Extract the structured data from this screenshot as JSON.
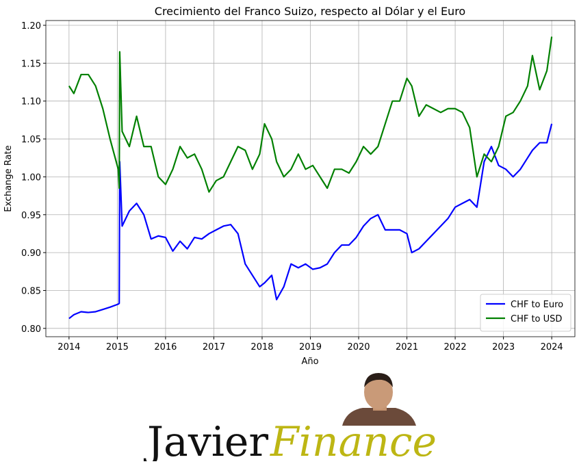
{
  "chart_data": {
    "type": "line",
    "title": "Crecimiento del Franco Suizo, respecto al Dólar y el Euro",
    "xlabel": "Año",
    "ylabel": "Exchange Rate",
    "x": [
      2014,
      2014.1,
      2014.25,
      2014.4,
      2014.55,
      2014.7,
      2014.85,
      2015.02,
      2015.04,
      2015.05,
      2015.1,
      2015.25,
      2015.4,
      2015.55,
      2015.7,
      2015.85,
      2016,
      2016.15,
      2016.3,
      2016.45,
      2016.6,
      2016.75,
      2016.9,
      2017.05,
      2017.2,
      2017.35,
      2017.5,
      2017.65,
      2017.8,
      2017.95,
      2018.05,
      2018.2,
      2018.3,
      2018.45,
      2018.6,
      2018.75,
      2018.9,
      2019.05,
      2019.2,
      2019.35,
      2019.5,
      2019.65,
      2019.8,
      2019.95,
      2020.1,
      2020.25,
      2020.4,
      2020.55,
      2020.7,
      2020.85,
      2021.0,
      2021.1,
      2021.25,
      2021.4,
      2021.55,
      2021.7,
      2021.85,
      2022.0,
      2022.15,
      2022.3,
      2022.45,
      2022.6,
      2022.75,
      2022.9,
      2023.05,
      2023.2,
      2023.35,
      2023.5,
      2023.6,
      2023.75,
      2023.9,
      2024.0
    ],
    "series": [
      {
        "name": "CHF to Euro",
        "color": "#0000ff",
        "values": [
          0.813,
          0.818,
          0.822,
          0.821,
          0.822,
          0.825,
          0.828,
          0.832,
          0.833,
          1.02,
          0.935,
          0.955,
          0.965,
          0.95,
          0.918,
          0.922,
          0.92,
          0.902,
          0.915,
          0.905,
          0.92,
          0.918,
          0.925,
          0.93,
          0.935,
          0.937,
          0.925,
          0.885,
          0.87,
          0.855,
          0.86,
          0.87,
          0.838,
          0.855,
          0.885,
          0.88,
          0.885,
          0.878,
          0.88,
          0.885,
          0.9,
          0.91,
          0.91,
          0.92,
          0.935,
          0.945,
          0.95,
          0.93,
          0.93,
          0.93,
          0.925,
          0.9,
          0.905,
          0.915,
          0.925,
          0.935,
          0.945,
          0.96,
          0.965,
          0.97,
          0.96,
          1.02,
          1.04,
          1.015,
          1.01,
          1.0,
          1.01,
          1.025,
          1.035,
          1.045,
          1.045,
          1.07
        ]
      },
      {
        "name": "CHF to USD",
        "color": "#008000",
        "values": [
          1.12,
          1.11,
          1.135,
          1.135,
          1.12,
          1.09,
          1.05,
          1.01,
          0.985,
          1.165,
          1.06,
          1.04,
          1.08,
          1.04,
          1.04,
          1.0,
          0.99,
          1.01,
          1.04,
          1.025,
          1.03,
          1.01,
          0.98,
          0.995,
          1.0,
          1.02,
          1.04,
          1.035,
          1.01,
          1.03,
          1.07,
          1.05,
          1.02,
          1.0,
          1.01,
          1.03,
          1.01,
          1.015,
          1.0,
          0.985,
          1.01,
          1.01,
          1.005,
          1.02,
          1.04,
          1.03,
          1.04,
          1.07,
          1.1,
          1.1,
          1.13,
          1.12,
          1.08,
          1.095,
          1.09,
          1.085,
          1.09,
          1.09,
          1.085,
          1.065,
          1.0,
          1.03,
          1.02,
          1.04,
          1.08,
          1.085,
          1.1,
          1.12,
          1.16,
          1.115,
          1.14,
          1.185
        ]
      }
    ],
    "xlim": [
      2013.52,
      2024.48
    ],
    "xticks": [
      2014,
      2015,
      2016,
      2017,
      2018,
      2019,
      2020,
      2021,
      2022,
      2023,
      2024
    ],
    "ylim": [
      0.789,
      1.2063
    ],
    "yticks": [
      {
        "value": 0.8,
        "label": "0.80"
      },
      {
        "value": 0.85,
        "label": "0.85"
      },
      {
        "value": 0.9,
        "label": "0.90"
      },
      {
        "value": 0.95,
        "label": "0.95"
      },
      {
        "value": 1.0,
        "label": "1.00"
      },
      {
        "value": 1.05,
        "label": "1.05"
      },
      {
        "value": 1.1,
        "label": "1.10"
      },
      {
        "value": 1.15,
        "label": "1.15"
      },
      {
        "value": 1.2,
        "label": "1.20"
      }
    ],
    "grid": true,
    "legend": "lower right"
  },
  "logo": {
    "first": "Javier",
    "second": "Finance"
  }
}
